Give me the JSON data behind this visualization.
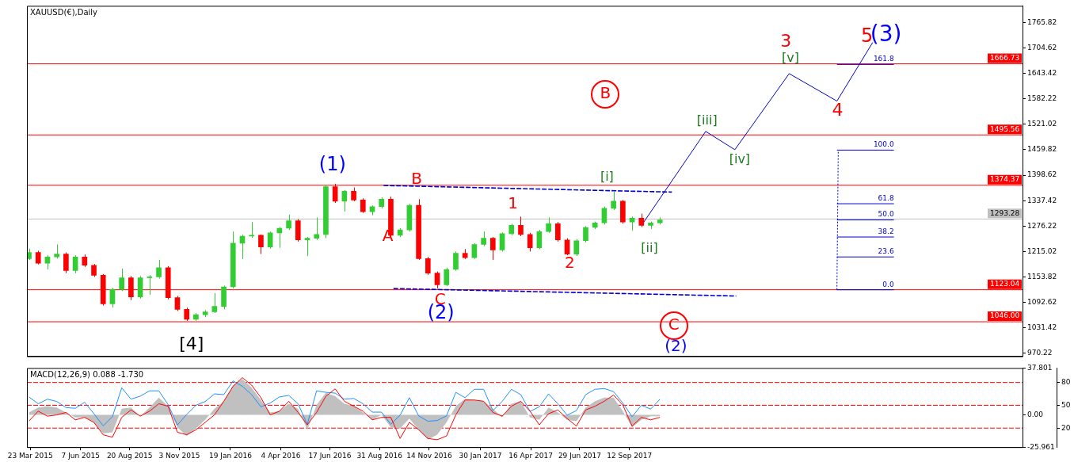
{
  "chart_data": [
    {
      "type": "candlestick",
      "title": "XAUUSD(€),Daily",
      "tick_labels": "y",
      "x": [
        "2015-03-21",
        "2015-04-04",
        "2015-04-18",
        "2015-05-02",
        "2015-05-16",
        "2015-05-30",
        "2015-06-13",
        "2015-06-27",
        "2015-07-11",
        "2015-07-25",
        "2015-08-08",
        "2015-08-22",
        "2015-09-05",
        "2015-09-19",
        "2015-10-03",
        "2015-10-17",
        "2015-10-31",
        "2015-11-14",
        "2015-11-28",
        "2015-12-12",
        "2015-12-26",
        "2016-01-09",
        "2016-01-23",
        "2016-02-06",
        "2016-02-20",
        "2016-03-05",
        "2016-03-19",
        "2016-04-02",
        "2016-04-16",
        "2016-04-30",
        "2016-05-14",
        "2016-05-28",
        "2016-06-11",
        "2016-06-25",
        "2016-07-09",
        "2016-07-23",
        "2016-08-06",
        "2016-08-20",
        "2016-09-03",
        "2016-09-17",
        "2016-10-01",
        "2016-10-15",
        "2016-10-29",
        "2016-11-12",
        "2016-11-26",
        "2016-12-10",
        "2016-12-24",
        "2017-01-07",
        "2017-01-21",
        "2017-02-04",
        "2017-02-18",
        "2017-03-04",
        "2017-03-18",
        "2017-04-01",
        "2017-04-15",
        "2017-04-29",
        "2017-05-13",
        "2017-05-27",
        "2017-06-10",
        "2017-06-24",
        "2017-07-08",
        "2017-07-22",
        "2017-08-05",
        "2017-08-19",
        "2017-09-02",
        "2017-09-16",
        "2017-09-30",
        "2017-10-14",
        "2017-10-28"
      ],
      "ohlc": [
        [
          1198,
          1222,
          1195,
          1213
        ],
        [
          1213,
          1217,
          1184,
          1187
        ],
        [
          1187,
          1206,
          1172,
          1202
        ],
        [
          1202,
          1232,
          1198,
          1209
        ],
        [
          1209,
          1213,
          1163,
          1169
        ],
        [
          1169,
          1206,
          1163,
          1202
        ],
        [
          1202,
          1208,
          1178,
          1182
        ],
        [
          1182,
          1185,
          1154,
          1158
        ],
        [
          1158,
          1161,
          1085,
          1089
        ],
        [
          1089,
          1128,
          1080,
          1124
        ],
        [
          1124,
          1174,
          1120,
          1152
        ],
        [
          1152,
          1156,
          1098,
          1106
        ],
        [
          1106,
          1156,
          1102,
          1152
        ],
        [
          1152,
          1158,
          1111,
          1154
        ],
        [
          1154,
          1195,
          1150,
          1176
        ],
        [
          1176,
          1180,
          1100,
          1104
        ],
        [
          1104,
          1108,
          1072,
          1076
        ],
        [
          1076,
          1080,
          1048,
          1052
        ],
        [
          1052,
          1067,
          1048,
          1063
        ],
        [
          1063,
          1074,
          1057,
          1070
        ],
        [
          1070,
          1115,
          1067,
          1083
        ],
        [
          1083,
          1133,
          1076,
          1130
        ],
        [
          1130,
          1263,
          1126,
          1235
        ],
        [
          1235,
          1256,
          1197,
          1252
        ],
        [
          1252,
          1286,
          1248,
          1254
        ],
        [
          1254,
          1256,
          1209,
          1226
        ],
        [
          1226,
          1263,
          1222,
          1260
        ],
        [
          1260,
          1274,
          1224,
          1271
        ],
        [
          1271,
          1304,
          1267,
          1289
        ],
        [
          1289,
          1293,
          1239,
          1243
        ],
        [
          1243,
          1250,
          1204,
          1247
        ],
        [
          1247,
          1297,
          1243,
          1256
        ],
        [
          1256,
          1375,
          1247,
          1371
        ],
        [
          1371,
          1378,
          1332,
          1336
        ],
        [
          1336,
          1363,
          1311,
          1360
        ],
        [
          1360,
          1369,
          1336,
          1339
        ],
        [
          1339,
          1343,
          1308,
          1311
        ],
        [
          1311,
          1326,
          1302,
          1323
        ],
        [
          1323,
          1345,
          1319,
          1341
        ],
        [
          1341,
          1347,
          1247,
          1254
        ],
        [
          1254,
          1271,
          1250,
          1267
        ],
        [
          1267,
          1330,
          1263,
          1326
        ],
        [
          1326,
          1341,
          1195,
          1198
        ],
        [
          1198,
          1202,
          1159,
          1163
        ],
        [
          1163,
          1167,
          1126,
          1135
        ],
        [
          1135,
          1176,
          1132,
          1172
        ],
        [
          1172,
          1215,
          1169,
          1211
        ],
        [
          1211,
          1221,
          1197,
          1200
        ],
        [
          1200,
          1235,
          1197,
          1232
        ],
        [
          1232,
          1263,
          1228,
          1247
        ],
        [
          1247,
          1250,
          1195,
          1219
        ],
        [
          1219,
          1261,
          1215,
          1258
        ],
        [
          1258,
          1282,
          1254,
          1278
        ],
        [
          1278,
          1299,
          1252,
          1256
        ],
        [
          1256,
          1260,
          1215,
          1224
        ],
        [
          1224,
          1267,
          1221,
          1263
        ],
        [
          1263,
          1297,
          1260,
          1282
        ],
        [
          1282,
          1286,
          1239,
          1243
        ],
        [
          1243,
          1247,
          1206,
          1209
        ],
        [
          1209,
          1245,
          1204,
          1241
        ],
        [
          1241,
          1276,
          1237,
          1273
        ],
        [
          1273,
          1287,
          1269,
          1284
        ],
        [
          1284,
          1323,
          1280,
          1319
        ],
        [
          1319,
          1360,
          1315,
          1336
        ],
        [
          1336,
          1339,
          1282,
          1286
        ],
        [
          1286,
          1299,
          1265,
          1295
        ],
        [
          1295,
          1306,
          1274,
          1278
        ],
        [
          1278,
          1287,
          1269,
          1284
        ],
        [
          1284,
          1297,
          1280,
          1291
        ]
      ],
      "colors": [
        "#32cd32",
        "#ff0000",
        "#32cd32",
        "#32cd32",
        "#ff0000",
        "#32cd32",
        "#ff0000",
        "#ff0000",
        "#ff0000",
        "#32cd32",
        "#32cd32",
        "#ff0000",
        "#32cd32",
        "#32cd32",
        "#32cd32",
        "#ff0000",
        "#ff0000",
        "#ff0000",
        "#32cd32",
        "#32cd32",
        "#32cd32",
        "#32cd32",
        "#32cd32",
        "#32cd32",
        "#32cd32",
        "#ff0000",
        "#32cd32",
        "#32cd32",
        "#32cd32",
        "#ff0000",
        "#32cd32",
        "#32cd32",
        "#32cd32",
        "#ff0000",
        "#32cd32",
        "#ff0000",
        "#ff0000",
        "#32cd32",
        "#32cd32",
        "#ff0000",
        "#32cd32",
        "#32cd32",
        "#ff0000",
        "#ff0000",
        "#ff0000",
        "#32cd32",
        "#32cd32",
        "#ff0000",
        "#32cd32",
        "#32cd32",
        "#ff0000",
        "#32cd32",
        "#32cd32",
        "#ff0000",
        "#ff0000",
        "#32cd32",
        "#32cd32",
        "#ff0000",
        "#ff0000",
        "#32cd32",
        "#32cd32",
        "#32cd32",
        "#32cd32",
        "#32cd32",
        "#ff0000",
        "#32cd32",
        "#ff0000",
        "#32cd32",
        "#32cd32"
      ],
      "series": [
        {
          "type": "line",
          "color": "#0000cc",
          "line_style": "solid",
          "x": [
            "2017-10-02",
            "2018-01-05",
            "2018-02-18",
            "2018-05-11",
            "2018-07-22",
            "2018-09-14"
          ],
          "values": [
            1282,
            1504,
            1460,
            1643,
            1577,
            1718
          ]
        },
        {
          "type": "line",
          "color": "#0000cc",
          "line_style": "dashed",
          "x": [
            "2016-09-06",
            "2017-11-15"
          ],
          "values": [
            1374,
            1358
          ]
        },
        {
          "type": "line",
          "color": "#0000cc",
          "line_style": "dashed",
          "x": [
            "2016-09-21",
            "2018-02-20"
          ],
          "values": [
            1126,
            1108
          ]
        },
        {
          "type": "line",
          "color": "#0000cc",
          "line_style": "dotted",
          "x": [
            "2018-07-22",
            "2018-07-24"
          ],
          "values": [
            1123,
            1459
          ]
        },
        {
          "type": "line",
          "name": "161.8",
          "color": "#0000cc",
          "line_style": "solid",
          "x": [
            "2018-07-22",
            "2018-10-16"
          ],
          "values": [
            1665,
            1665
          ]
        },
        {
          "type": "line",
          "name": "100.0",
          "color": "#0000cc",
          "line_style": "solid",
          "x": [
            "2018-07-22",
            "2018-10-16"
          ],
          "values": [
            1459,
            1459
          ]
        },
        {
          "type": "line",
          "name": "61.8",
          "color": "#0000cc",
          "line_style": "solid",
          "x": [
            "2018-07-22",
            "2018-10-16"
          ],
          "values": [
            1330,
            1330
          ]
        },
        {
          "type": "line",
          "name": "50.0",
          "color": "#0000cc",
          "line_style": "solid",
          "x": [
            "2018-07-22",
            "2018-10-16"
          ],
          "values": [
            1291,
            1291
          ]
        },
        {
          "type": "line",
          "name": "38.2",
          "color": "#0000cc",
          "line_style": "solid",
          "x": [
            "2018-07-22",
            "2018-10-16"
          ],
          "values": [
            1250,
            1250
          ]
        },
        {
          "type": "line",
          "name": "23.6",
          "color": "#0000cc",
          "line_style": "solid",
          "x": [
            "2018-07-22",
            "2018-10-16"
          ],
          "values": [
            1202,
            1202
          ]
        },
        {
          "type": "line",
          "name": "0.0",
          "color": "#0000cc",
          "line_style": "solid",
          "x": [
            "2018-07-22",
            "2018-10-16"
          ],
          "values": [
            1123,
            1123
          ]
        }
      ],
      "xlim": [
        "2015-03-18",
        "2019-04-28"
      ],
      "ylim": [
        963,
        1806
      ],
      "yticks": [
        1765.82,
        1704.62,
        1643.42,
        1582.22,
        1521.02,
        1459.82,
        1398.62,
        1337.42,
        1276.22,
        1215.02,
        1153.82,
        1092.62,
        1031.42,
        970.22
      ],
      "ref_lines": [
        {
          "axis": "y",
          "value": 1666.73,
          "label": "1666.73",
          "color": "#ff0000"
        },
        {
          "axis": "y",
          "value": 1495.56,
          "label": "1495.56",
          "color": "#ff0000"
        },
        {
          "axis": "y",
          "value": 1374.37,
          "label": "1374.37",
          "color": "#ff0000"
        },
        {
          "axis": "y",
          "value": 1293.28,
          "label": "1293.28",
          "color": "#c0c0c0"
        },
        {
          "axis": "y",
          "value": 1123.04,
          "label": "1123.04",
          "color": "#ff0000"
        },
        {
          "axis": "y",
          "value": 1046,
          "label": "1046.00",
          "color": "#ff0000"
        }
      ],
      "annotations": [
        "(1)",
        "(2)",
        "(3)",
        "A",
        "B",
        "C",
        "1",
        "2",
        "3",
        "4",
        "5",
        "[i]",
        "[ii]",
        "[iii]",
        "[iv]",
        "[v]",
        "B",
        "C",
        "(2)",
        "[4]"
      ]
    },
    {
      "type": "line",
      "title": "MACD(12,26,9) 0.088 -1.730",
      "x": [
        "2015-03-21",
        "2015-04-04",
        "2015-04-18",
        "2015-05-02",
        "2015-05-16",
        "2015-05-30",
        "2015-06-13",
        "2015-06-27",
        "2015-07-11",
        "2015-07-25",
        "2015-08-08",
        "2015-08-22",
        "2015-09-05",
        "2015-09-19",
        "2015-10-03",
        "2015-10-17",
        "2015-10-31",
        "2015-11-14",
        "2015-11-28",
        "2015-12-12",
        "2015-12-26",
        "2016-01-09",
        "2016-01-23",
        "2016-02-06",
        "2016-02-20",
        "2016-03-05",
        "2016-03-19",
        "2016-04-02",
        "2016-04-16",
        "2016-04-30",
        "2016-05-14",
        "2016-05-28",
        "2016-06-11",
        "2016-06-25",
        "2016-07-09",
        "2016-07-23",
        "2016-08-06",
        "2016-08-20",
        "2016-09-03",
        "2016-09-17",
        "2016-10-01",
        "2016-10-15",
        "2016-10-29",
        "2016-11-12",
        "2016-11-26",
        "2016-12-10",
        "2016-12-24",
        "2017-01-07",
        "2017-01-21",
        "2017-02-04",
        "2017-02-18",
        "2017-03-04",
        "2017-03-18",
        "2017-04-01",
        "2017-04-15",
        "2017-04-29",
        "2017-05-13",
        "2017-05-27",
        "2017-06-10",
        "2017-06-24",
        "2017-07-08",
        "2017-07-22",
        "2017-08-05",
        "2017-08-19",
        "2017-09-02",
        "2017-09-16",
        "2017-09-30",
        "2017-10-14",
        "2017-10-28"
      ],
      "series": [
        {
          "type": "area",
          "color": "#c0c0c0",
          "values": [
            2,
            6,
            7,
            6,
            2,
            -2,
            -2,
            -6,
            -15,
            -14,
            5,
            6,
            -1,
            6,
            14,
            7,
            -10,
            -17,
            -11,
            -4,
            5,
            11,
            24,
            29,
            22,
            12,
            2,
            3,
            9,
            5,
            -12,
            8,
            18,
            15,
            9,
            7,
            2,
            -4,
            0,
            -10,
            -11,
            -3,
            -12,
            -20,
            -16,
            -6,
            7,
            13,
            12,
            11,
            5,
            -2,
            9,
            11,
            -2,
            -4,
            6,
            2,
            -4,
            -5,
            6,
            11,
            14,
            14,
            3,
            -10,
            -4,
            -1,
            -1
          ]
        },
        {
          "type": "line",
          "color": "#ff0000",
          "values": [
            -5,
            3,
            -1,
            0,
            2,
            -4,
            -2,
            -6,
            -16,
            -18,
            -2,
            4,
            -1,
            3,
            9,
            7,
            -14,
            -16,
            -12,
            -6,
            0,
            11,
            23,
            30,
            24,
            14,
            0,
            3,
            11,
            2,
            -8,
            2,
            15,
            21,
            11,
            7,
            3,
            -4,
            -2,
            -2,
            -19,
            -6,
            -12,
            -19,
            -20,
            -17,
            0,
            12,
            12,
            11,
            2,
            -1,
            7,
            11,
            3,
            -8,
            1,
            4,
            -3,
            -9,
            4,
            7,
            11,
            16,
            8,
            -9,
            -2,
            -4,
            -2
          ]
        },
        {
          "type": "line",
          "color": "#1e90ff",
          "axis": "y2",
          "values": [
            61,
            52,
            58,
            55,
            47,
            46,
            54,
            39,
            23,
            35,
            73,
            58,
            62,
            69,
            69,
            51,
            24,
            38,
            50,
            55,
            65,
            64,
            82,
            75,
            64,
            48,
            53,
            61,
            63,
            52,
            25,
            69,
            67,
            66,
            58,
            59,
            52,
            41,
            41,
            25,
            37,
            60,
            36,
            29,
            30,
            36,
            67,
            60,
            71,
            71,
            43,
            55,
            71,
            64,
            42,
            48,
            65,
            52,
            37,
            43,
            64,
            71,
            72,
            68,
            53,
            35,
            50,
            45,
            58
          ]
        }
      ],
      "xlim": [
        "2015-03-18",
        "2019-04-28"
      ],
      "xticks": [
        {
          "value": "2015-03-23",
          "label": "23 Mar 2015"
        },
        {
          "value": "2015-06-07",
          "label": "7 Jun 2015"
        },
        {
          "value": "2015-08-20",
          "label": "20 Aug 2015"
        },
        {
          "value": "2015-11-03",
          "label": "3 Nov 2015"
        },
        {
          "value": "2016-01-19",
          "label": "19 Jan 2016"
        },
        {
          "value": "2016-04-04",
          "label": "4 Apr 2016"
        },
        {
          "value": "2016-06-17",
          "label": "17 Jun 2016"
        },
        {
          "value": "2016-08-31",
          "label": "31 Aug 2016"
        },
        {
          "value": "2016-11-14",
          "label": "14 Nov 2016"
        },
        {
          "value": "2017-01-30",
          "label": "30 Jan 2017"
        },
        {
          "value": "2017-04-16",
          "label": "16 Apr 2017"
        },
        {
          "value": "2017-06-29",
          "label": "29 Jun 2017"
        },
        {
          "value": "2017-09-12",
          "label": "12 Sep 2017"
        }
      ],
      "ylim": [
        -25.961,
        37.801
      ],
      "yticks": [
        37.801,
        {
          "value": 0,
          "label": "0.00"
        },
        -25.961
      ],
      "y2lim": [
        -5,
        99
      ],
      "y2ticks": [
        80,
        50,
        20
      ],
      "ref_lines": [
        {
          "axis": "y2",
          "value": 80,
          "color": "#ff0000",
          "line_style": "dashed"
        },
        {
          "axis": "y2",
          "value": 50,
          "color": "#ff0000",
          "line_style": "dashed"
        },
        {
          "axis": "y2",
          "value": 20,
          "color": "#ff0000",
          "line_style": "dashed"
        }
      ]
    }
  ]
}
